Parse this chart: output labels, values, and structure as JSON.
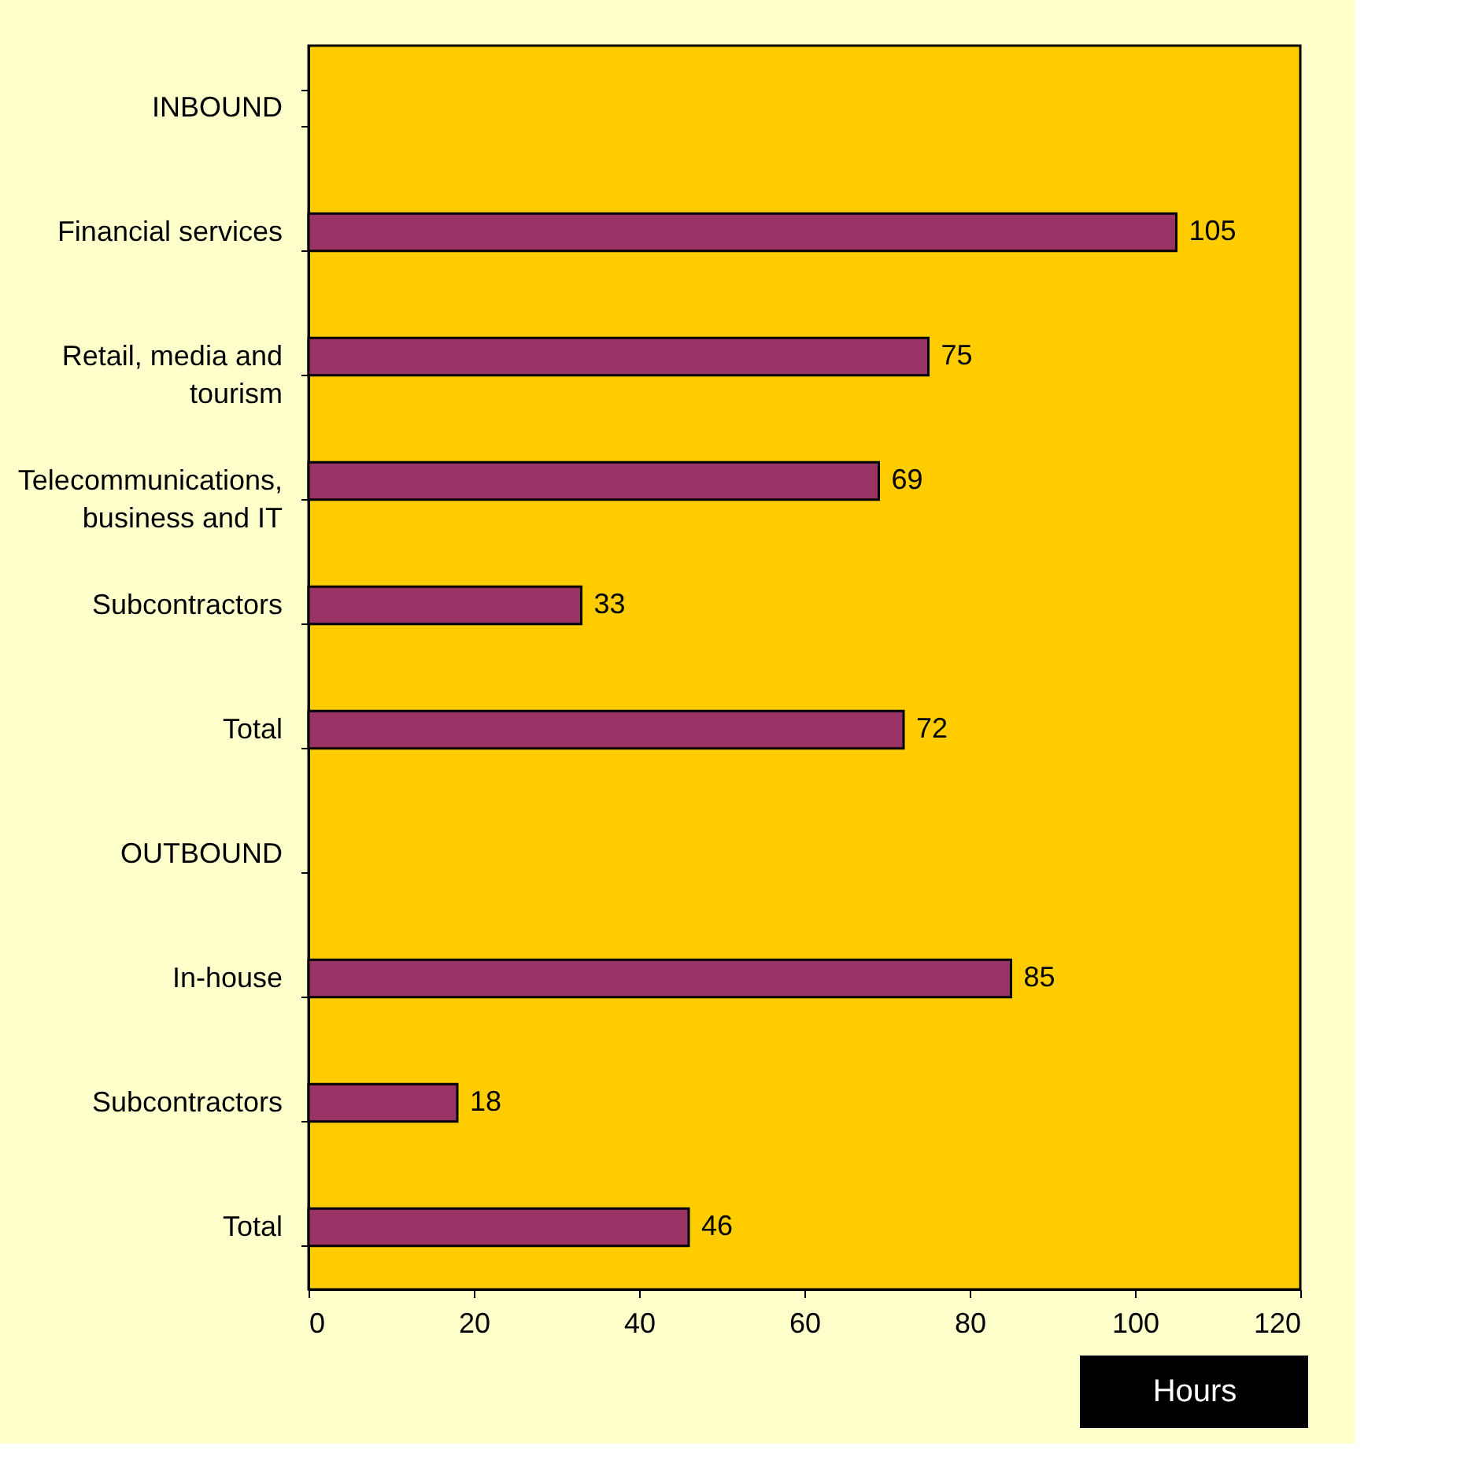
{
  "chart_data": {
    "type": "bar",
    "orientation": "horizontal",
    "xlabel": "Hours",
    "categories": [
      "INBOUND",
      "Financial services",
      "Retail, media and tourism",
      "Telecommunications, business and IT",
      "Subcontractors",
      "Total",
      "OUTBOUND",
      "In-house",
      "Subcontractors",
      "Total"
    ],
    "values": [
      null,
      105,
      75,
      69,
      33,
      72,
      null,
      85,
      18,
      46
    ],
    "color": "#993366",
    "xlim": [
      0,
      120
    ],
    "xticks": [
      0,
      20,
      40,
      60,
      80,
      100,
      120
    ],
    "data_labels": true,
    "grid": false
  }
}
